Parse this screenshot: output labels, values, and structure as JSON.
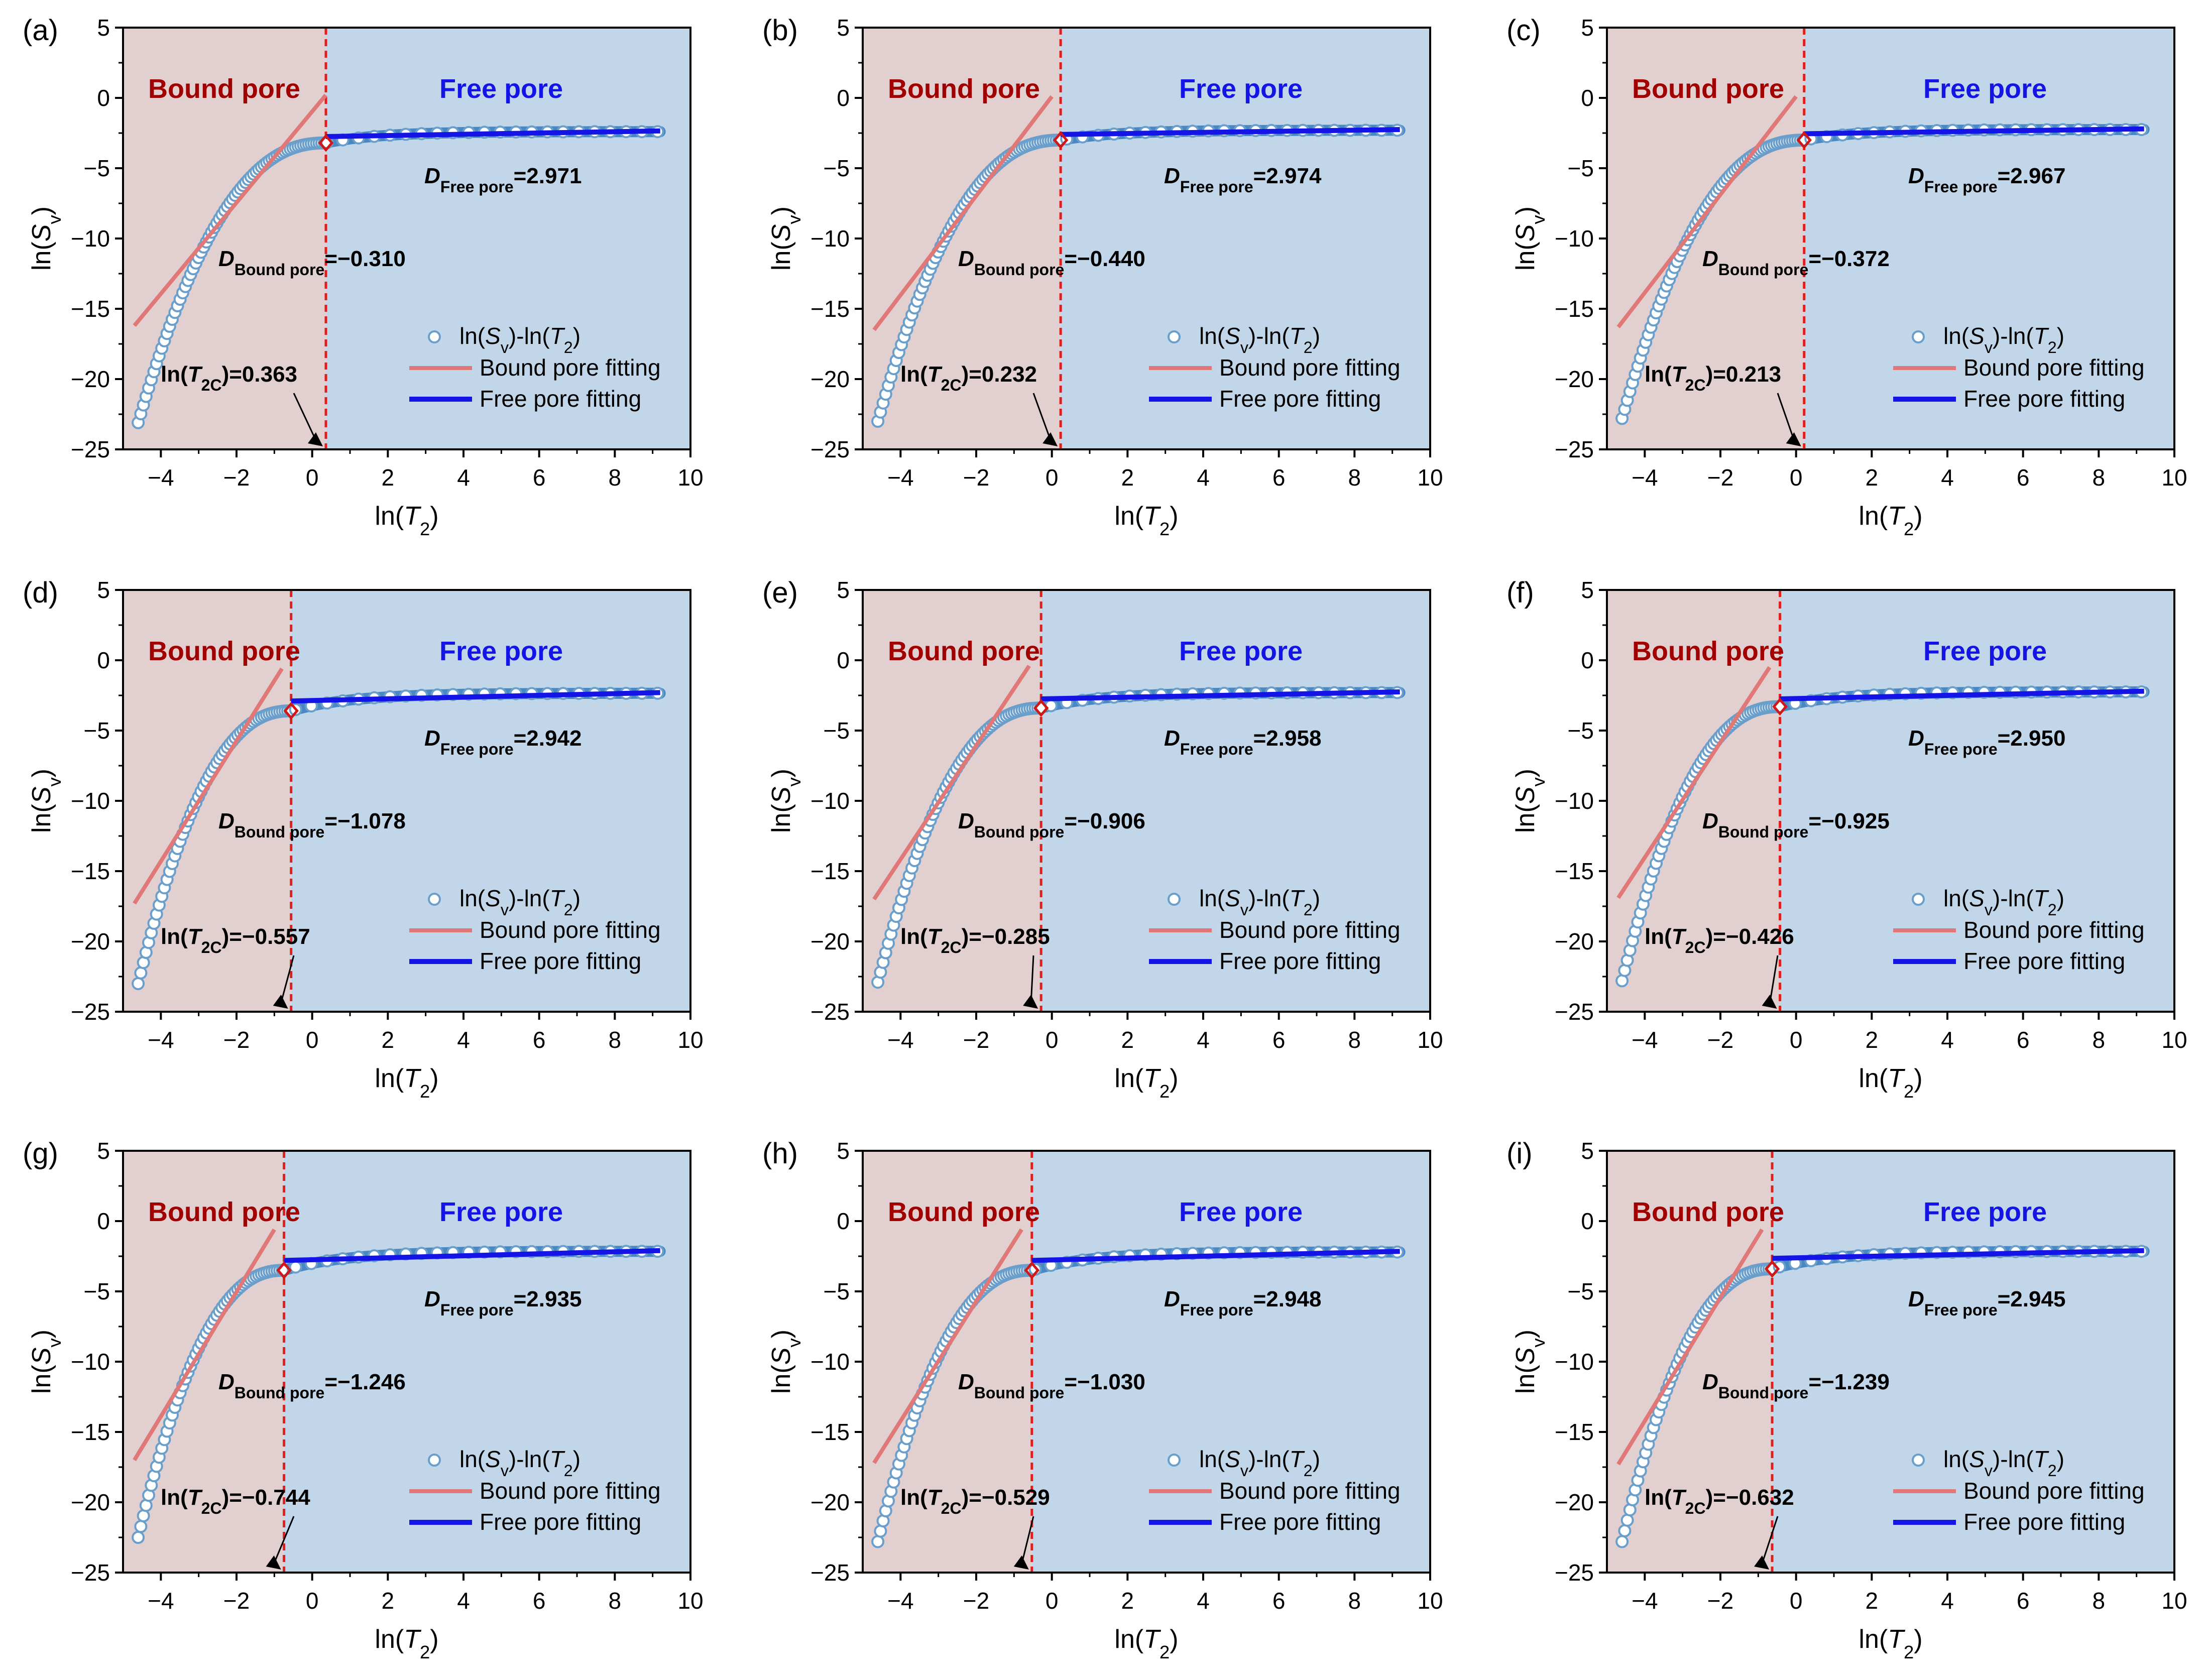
{
  "figure": {
    "colors": {
      "bound_region": "#e2cfd0",
      "free_region": "#c2d6ea",
      "bound_label": "#a00000",
      "free_label": "#1414e6",
      "cutoff_line": "#e01e1e",
      "bound_fit": "#e07878",
      "free_fit": "#1414e6",
      "marker_fill": "#ffffff",
      "marker_stroke": "#6a9fcc",
      "free_data": "#4a88c4",
      "cutoff_marker": "#d01818"
    }
  },
  "chart_data": [
    {
      "type": "scatter",
      "panel": "(a)",
      "xlabel": "ln(T2)",
      "ylabel": "ln(Sv)",
      "xlim": [
        -5,
        10
      ],
      "ylim": [
        -25,
        5
      ],
      "xticks": [
        "−4",
        "−2",
        "0",
        "2",
        "4",
        "6",
        "8",
        "10"
      ],
      "yticks": [
        "5",
        "0",
        "−5",
        "−10",
        "−15",
        "−20",
        "−25"
      ],
      "region_labels": {
        "bound": "Bound pore",
        "free": "Free pore"
      },
      "cutoff_ln_T2C": 0.363,
      "cutoff_text": "ln(T2C)=0.363",
      "D_bound": -0.31,
      "D_bound_text": "DBound pore=−0.310",
      "D_free": 2.971,
      "D_free_text": "DFree pore=2.971",
      "legend": [
        "ln(Sv)-ln(T2)",
        "Bound pore fitting",
        "Free pore fitting"
      ],
      "bound_fit_line": {
        "x": [
          -4.7,
          0.36
        ],
        "y": [
          -16.2,
          0.2
        ]
      },
      "free_fit_line": {
        "x": [
          0.36,
          9.2
        ],
        "y": [
          -2.75,
          -2.35
        ]
      },
      "series": [
        {
          "name": "ln(Sv)-ln(T2)",
          "x_start": -4.6,
          "x_end": 9.2,
          "points": 200,
          "y_start": -23.1,
          "y_knee": -3.2,
          "y_end": -2.4
        }
      ]
    },
    {
      "type": "scatter",
      "panel": "(b)",
      "xlabel": "ln(T2)",
      "ylabel": "ln(Sv)",
      "xlim": [
        -5,
        10
      ],
      "ylim": [
        -25,
        5
      ],
      "xticks": [
        "−4",
        "−2",
        "0",
        "2",
        "4",
        "6",
        "8",
        "10"
      ],
      "yticks": [
        "5",
        "0",
        "−5",
        "−10",
        "−15",
        "−20",
        "−25"
      ],
      "region_labels": {
        "bound": "Bound pore",
        "free": "Free pore"
      },
      "cutoff_ln_T2C": 0.232,
      "cutoff_text": "ln(T2C)=0.232",
      "D_bound": -0.44,
      "D_bound_text": "DBound pore=−0.440",
      "D_free": 2.974,
      "D_free_text": "DFree pore=2.974",
      "legend": [
        "ln(Sv)-ln(T2)",
        "Bound pore fitting",
        "Free pore fitting"
      ],
      "bound_fit_line": {
        "x": [
          -4.7,
          0.0
        ],
        "y": [
          -16.5,
          0.1
        ]
      },
      "free_fit_line": {
        "x": [
          0.23,
          9.2
        ],
        "y": [
          -2.6,
          -2.25
        ]
      },
      "series": [
        {
          "name": "ln(Sv)-ln(T2)",
          "x_start": -4.6,
          "x_end": 9.2,
          "points": 200,
          "y_start": -23.0,
          "y_knee": -3.0,
          "y_end": -2.3
        }
      ]
    },
    {
      "type": "scatter",
      "panel": "(c)",
      "xlabel": "ln(T2)",
      "ylabel": "ln(Sv)",
      "xlim": [
        -5,
        10
      ],
      "ylim": [
        -25,
        5
      ],
      "xticks": [
        "−4",
        "−2",
        "0",
        "2",
        "4",
        "6",
        "8",
        "10"
      ],
      "yticks": [
        "5",
        "0",
        "−5",
        "−10",
        "−15",
        "−20",
        "−25"
      ],
      "region_labels": {
        "bound": "Bound pore",
        "free": "Free pore"
      },
      "cutoff_ln_T2C": 0.213,
      "cutoff_text": "ln(T2C)=0.213",
      "D_bound": -0.372,
      "D_bound_text": "DBound pore=−0.372",
      "D_free": 2.967,
      "D_free_text": "DFree pore=2.967",
      "legend": [
        "ln(Sv)-ln(T2)",
        "Bound pore fitting",
        "Free pore fitting"
      ],
      "bound_fit_line": {
        "x": [
          -4.7,
          0.0
        ],
        "y": [
          -16.3,
          0.1
        ]
      },
      "free_fit_line": {
        "x": [
          0.21,
          9.2
        ],
        "y": [
          -2.55,
          -2.2
        ]
      },
      "series": [
        {
          "name": "ln(Sv)-ln(T2)",
          "x_start": -4.6,
          "x_end": 9.2,
          "points": 200,
          "y_start": -22.8,
          "y_knee": -3.0,
          "y_end": -2.25
        }
      ]
    },
    {
      "type": "scatter",
      "panel": "(d)",
      "xlabel": "ln(T2)",
      "ylabel": "ln(Sv)",
      "xlim": [
        -5,
        10
      ],
      "ylim": [
        -25,
        5
      ],
      "xticks": [
        "−4",
        "−2",
        "0",
        "2",
        "4",
        "6",
        "8",
        "10"
      ],
      "yticks": [
        "5",
        "0",
        "−5",
        "−10",
        "−15",
        "−20",
        "−25"
      ],
      "region_labels": {
        "bound": "Bound pore",
        "free": "Free pore"
      },
      "cutoff_ln_T2C": -0.557,
      "cutoff_text": "ln(T2C)=−0.557",
      "D_bound": -1.078,
      "D_bound_text": "DBound pore=−1.078",
      "D_free": 2.942,
      "D_free_text": "DFree pore=2.942",
      "legend": [
        "ln(Sv)-ln(T2)",
        "Bound pore fitting",
        "Free pore fitting"
      ],
      "bound_fit_line": {
        "x": [
          -4.7,
          -0.8
        ],
        "y": [
          -17.3,
          -0.6
        ]
      },
      "free_fit_line": {
        "x": [
          -0.56,
          9.2
        ],
        "y": [
          -2.9,
          -2.3
        ]
      },
      "series": [
        {
          "name": "ln(Sv)-ln(T2)",
          "x_start": -4.6,
          "x_end": 9.2,
          "points": 200,
          "y_start": -23.0,
          "y_knee": -3.6,
          "y_end": -2.35
        }
      ]
    },
    {
      "type": "scatter",
      "panel": "(e)",
      "xlabel": "ln(T2)",
      "ylabel": "ln(Sv)",
      "xlim": [
        -5,
        10
      ],
      "ylim": [
        -25,
        5
      ],
      "xticks": [
        "−4",
        "−2",
        "0",
        "2",
        "4",
        "6",
        "8",
        "10"
      ],
      "yticks": [
        "5",
        "0",
        "−5",
        "−10",
        "−15",
        "−20",
        "−25"
      ],
      "region_labels": {
        "bound": "Bound pore",
        "free": "Free pore"
      },
      "cutoff_ln_T2C": -0.285,
      "cutoff_text": "ln(T2C)=−0.285",
      "D_bound": -0.906,
      "D_bound_text": "DBound pore=−0.906",
      "D_free": 2.958,
      "D_free_text": "DFree pore=2.958",
      "legend": [
        "ln(Sv)-ln(T2)",
        "Bound pore fitting",
        "Free pore fitting"
      ],
      "bound_fit_line": {
        "x": [
          -4.7,
          -0.6
        ],
        "y": [
          -17.0,
          -0.4
        ]
      },
      "free_fit_line": {
        "x": [
          -0.29,
          9.2
        ],
        "y": [
          -2.75,
          -2.25
        ]
      },
      "series": [
        {
          "name": "ln(Sv)-ln(T2)",
          "x_start": -4.6,
          "x_end": 9.2,
          "points": 200,
          "y_start": -22.9,
          "y_knee": -3.4,
          "y_end": -2.3
        }
      ]
    },
    {
      "type": "scatter",
      "panel": "(f)",
      "xlabel": "ln(T2)",
      "ylabel": "ln(Sv)",
      "xlim": [
        -5,
        10
      ],
      "ylim": [
        -25,
        5
      ],
      "xticks": [
        "−4",
        "−2",
        "0",
        "2",
        "4",
        "6",
        "8",
        "10"
      ],
      "yticks": [
        "5",
        "0",
        "−5",
        "−10",
        "−15",
        "−20",
        "−25"
      ],
      "region_labels": {
        "bound": "Bound pore",
        "free": "Free pore"
      },
      "cutoff_ln_T2C": -0.426,
      "cutoff_text": "ln(T2C)=−0.426",
      "D_bound": -0.925,
      "D_bound_text": "DBound pore=−0.925",
      "D_free": 2.95,
      "D_free_text": "DFree pore=2.950",
      "legend": [
        "ln(Sv)-ln(T2)",
        "Bound pore fitting",
        "Free pore fitting"
      ],
      "bound_fit_line": {
        "x": [
          -4.7,
          -0.7
        ],
        "y": [
          -16.9,
          -0.5
        ]
      },
      "free_fit_line": {
        "x": [
          -0.43,
          9.2
        ],
        "y": [
          -2.75,
          -2.2
        ]
      },
      "series": [
        {
          "name": "ln(Sv)-ln(T2)",
          "x_start": -4.6,
          "x_end": 9.2,
          "points": 200,
          "y_start": -22.8,
          "y_knee": -3.3,
          "y_end": -2.25
        }
      ]
    },
    {
      "type": "scatter",
      "panel": "(g)",
      "xlabel": "ln(T2)",
      "ylabel": "ln(Sv)",
      "xlim": [
        -5,
        10
      ],
      "ylim": [
        -25,
        5
      ],
      "xticks": [
        "−4",
        "−2",
        "0",
        "2",
        "4",
        "6",
        "8",
        "10"
      ],
      "yticks": [
        "5",
        "0",
        "−5",
        "−10",
        "−15",
        "−20",
        "−25"
      ],
      "region_labels": {
        "bound": "Bound pore",
        "free": "Free pore"
      },
      "cutoff_ln_T2C": -0.744,
      "cutoff_text": "ln(T2C)=−0.744",
      "D_bound": -1.246,
      "D_bound_text": "DBound pore=−1.246",
      "D_free": 2.935,
      "D_free_text": "DFree pore=2.935",
      "legend": [
        "ln(Sv)-ln(T2)",
        "Bound pore fitting",
        "Free pore fitting"
      ],
      "bound_fit_line": {
        "x": [
          -4.7,
          -1.0
        ],
        "y": [
          -17.0,
          -0.6
        ]
      },
      "free_fit_line": {
        "x": [
          -0.74,
          9.2
        ],
        "y": [
          -2.8,
          -2.1
        ]
      },
      "series": [
        {
          "name": "ln(Sv)-ln(T2)",
          "x_start": -4.6,
          "x_end": 9.2,
          "points": 200,
          "y_start": -22.5,
          "y_knee": -3.5,
          "y_end": -2.15
        }
      ]
    },
    {
      "type": "scatter",
      "panel": "(h)",
      "xlabel": "ln(T2)",
      "ylabel": "ln(Sv)",
      "xlim": [
        -5,
        10
      ],
      "ylim": [
        -25,
        5
      ],
      "xticks": [
        "−4",
        "−2",
        "0",
        "2",
        "4",
        "6",
        "8",
        "10"
      ],
      "yticks": [
        "5",
        "0",
        "−5",
        "−10",
        "−15",
        "−20",
        "−25"
      ],
      "region_labels": {
        "bound": "Bound pore",
        "free": "Free pore"
      },
      "cutoff_ln_T2C": -0.529,
      "cutoff_text": "ln(T2C)=−0.529",
      "D_bound": -1.03,
      "D_bound_text": "DBound pore=−1.030",
      "D_free": 2.948,
      "D_free_text": "DFree pore=2.948",
      "legend": [
        "ln(Sv)-ln(T2)",
        "Bound pore fitting",
        "Free pore fitting"
      ],
      "bound_fit_line": {
        "x": [
          -4.7,
          -0.8
        ],
        "y": [
          -17.2,
          -0.6
        ]
      },
      "free_fit_line": {
        "x": [
          -0.53,
          9.2
        ],
        "y": [
          -2.8,
          -2.15
        ]
      },
      "series": [
        {
          "name": "ln(Sv)-ln(T2)",
          "x_start": -4.6,
          "x_end": 9.2,
          "points": 200,
          "y_start": -22.8,
          "y_knee": -3.5,
          "y_end": -2.2
        }
      ]
    },
    {
      "type": "scatter",
      "panel": "(i)",
      "xlabel": "ln(T2)",
      "ylabel": "ln(Sv)",
      "xlim": [
        -5,
        10
      ],
      "ylim": [
        -25,
        5
      ],
      "xticks": [
        "−4",
        "−2",
        "0",
        "2",
        "4",
        "6",
        "8",
        "10"
      ],
      "yticks": [
        "5",
        "0",
        "−5",
        "−10",
        "−15",
        "−20",
        "−25"
      ],
      "region_labels": {
        "bound": "Bound pore",
        "free": "Free pore"
      },
      "cutoff_ln_T2C": -0.632,
      "cutoff_text": "ln(T2C)=−0.632",
      "D_bound": -1.239,
      "D_bound_text": "DBound pore=−1.239",
      "D_free": 2.945,
      "D_free_text": "DFree pore=2.945",
      "legend": [
        "ln(Sv)-ln(T2)",
        "Bound pore fitting",
        "Free pore fitting"
      ],
      "bound_fit_line": {
        "x": [
          -4.7,
          -0.9
        ],
        "y": [
          -17.3,
          -0.6
        ]
      },
      "free_fit_line": {
        "x": [
          -0.63,
          9.2
        ],
        "y": [
          -2.65,
          -2.1
        ]
      },
      "series": [
        {
          "name": "ln(Sv)-ln(T2)",
          "x_start": -4.6,
          "x_end": 9.2,
          "points": 200,
          "y_start": -22.8,
          "y_knee": -3.4,
          "y_end": -2.15
        }
      ]
    }
  ]
}
